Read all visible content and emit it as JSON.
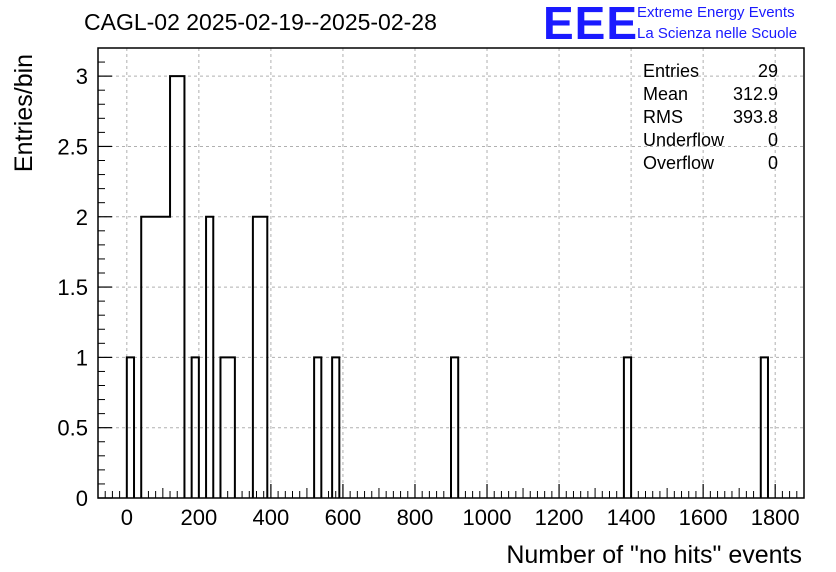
{
  "header": {
    "title": "CAGL-02 2025-02-19--2025-02-28",
    "logo_mark": "EEE",
    "logo_line1": "Extreme Energy Events",
    "logo_line2": "La Scienza nelle Scuole"
  },
  "colors": {
    "logo": "#1a1aff",
    "histogram": "#000000",
    "grid": "#b0b0b0"
  },
  "stats": [
    {
      "label": "Entries",
      "value": "29"
    },
    {
      "label": "Mean",
      "value": "312.9"
    },
    {
      "label": "RMS",
      "value": "393.8"
    },
    {
      "label": "Underflow",
      "value": "0"
    },
    {
      "label": "Overflow",
      "value": "0"
    }
  ],
  "chart_data": {
    "type": "bar",
    "title": "CAGL-02 2025-02-19--2025-02-28",
    "xlabel": "Number of \"no hits\" events",
    "ylabel": "Entries/bin",
    "xlim": [
      -80,
      1880
    ],
    "ylim": [
      0,
      3.2
    ],
    "xticks": [
      0,
      200,
      400,
      600,
      800,
      1000,
      1200,
      1400,
      1600,
      1800
    ],
    "yticks": [
      0,
      0.5,
      1,
      1.5,
      2,
      2.5,
      3
    ],
    "ytick_labels": [
      "0",
      "0.5",
      "1",
      "1.5",
      "2",
      "2.5",
      "3"
    ],
    "bin_width": 20,
    "grid": true,
    "bins": [
      {
        "x0": 0,
        "x1": 20,
        "value": 1
      },
      {
        "x0": 20,
        "x1": 40,
        "value": 0
      },
      {
        "x0": 40,
        "x1": 120,
        "value": 2
      },
      {
        "x0": 120,
        "x1": 160,
        "value": 3
      },
      {
        "x0": 160,
        "x1": 180,
        "value": 0
      },
      {
        "x0": 180,
        "x1": 200,
        "value": 1
      },
      {
        "x0": 200,
        "x1": 220,
        "value": 0
      },
      {
        "x0": 220,
        "x1": 240,
        "value": 2
      },
      {
        "x0": 240,
        "x1": 260,
        "value": 0
      },
      {
        "x0": 260,
        "x1": 300,
        "value": 1
      },
      {
        "x0": 300,
        "x1": 350,
        "value": 0
      },
      {
        "x0": 350,
        "x1": 390,
        "value": 2
      },
      {
        "x0": 520,
        "x1": 540,
        "value": 1
      },
      {
        "x0": 570,
        "x1": 590,
        "value": 1
      },
      {
        "x0": 900,
        "x1": 920,
        "value": 1
      },
      {
        "x0": 1380,
        "x1": 1400,
        "value": 1
      },
      {
        "x0": 1760,
        "x1": 1780,
        "value": 1
      }
    ]
  }
}
